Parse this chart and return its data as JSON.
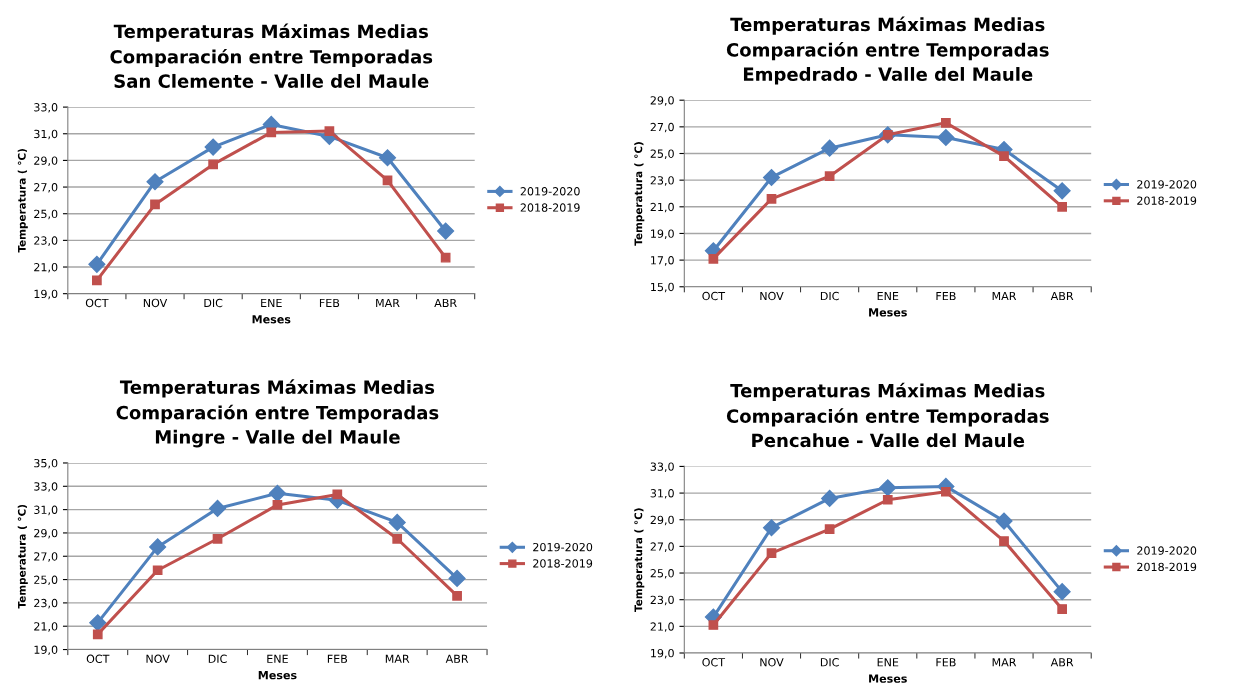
{
  "chart_data": [
    {
      "type": "line",
      "title": "Temperaturas Máximas Medias\nComparación entre Temporadas\nSan Clemente - Valle del Maule",
      "xlabel": "Meses",
      "ylabel": "Temperatura ( °C)",
      "categories": [
        "OCT",
        "NOV",
        "DIC",
        "ENE",
        "FEB",
        "MAR",
        "ABR"
      ],
      "ylim": [
        19,
        33
      ],
      "yticks": [
        {
          "value": 19,
          "label": "19,0"
        },
        {
          "value": 21,
          "label": "21,0"
        },
        {
          "value": 23,
          "label": "23,0"
        },
        {
          "value": 25,
          "label": "25,0"
        },
        {
          "value": 27,
          "label": "27,0"
        },
        {
          "value": 29,
          "label": "29,0"
        },
        {
          "value": 31,
          "label": "31,0"
        },
        {
          "value": 33,
          "label": "33,0"
        }
      ],
      "grid": "y",
      "legend": "right",
      "series": [
        {
          "name": "2019-2020",
          "color": "#4f81bd",
          "marker": "diamond",
          "values": [
            21.2,
            27.4,
            30.0,
            31.7,
            30.8,
            29.2,
            23.7
          ]
        },
        {
          "name": "2018-2019",
          "color": "#c0504d",
          "marker": "square",
          "values": [
            20.0,
            25.7,
            28.7,
            31.1,
            31.2,
            27.5,
            21.7
          ]
        }
      ]
    },
    {
      "type": "line",
      "title": "Temperaturas Máximas Medias\nComparación entre Temporadas\nEmpedrado - Valle del Maule",
      "xlabel": "Meses",
      "ylabel": "Temperatura ( °C)",
      "categories": [
        "OCT",
        "NOV",
        "DIC",
        "ENE",
        "FEB",
        "MAR",
        "ABR"
      ],
      "ylim": [
        15,
        29
      ],
      "yticks": [
        {
          "value": 15,
          "label": "15,0"
        },
        {
          "value": 17,
          "label": "17,0"
        },
        {
          "value": 19,
          "label": "19,0"
        },
        {
          "value": 21,
          "label": "21,0"
        },
        {
          "value": 23,
          "label": "23,0"
        },
        {
          "value": 25,
          "label": "25,0"
        },
        {
          "value": 27,
          "label": "27,0"
        },
        {
          "value": 29,
          "label": "29,0"
        }
      ],
      "grid": "y",
      "legend": "right",
      "series": [
        {
          "name": "2019-2020",
          "color": "#4f81bd",
          "marker": "diamond",
          "values": [
            17.7,
            23.2,
            25.4,
            26.4,
            26.2,
            25.3,
            22.2
          ]
        },
        {
          "name": "2018-2019",
          "color": "#c0504d",
          "marker": "square",
          "values": [
            17.1,
            21.6,
            23.3,
            26.4,
            27.3,
            24.8,
            21.0
          ]
        }
      ]
    },
    {
      "type": "line",
      "title": "Temperaturas Máximas Medias\nComparación entre Temporadas\nMingre - Valle del Maule",
      "xlabel": "Meses",
      "ylabel": "Temperatura ( °C)",
      "categories": [
        "OCT",
        "NOV",
        "DIC",
        "ENE",
        "FEB",
        "MAR",
        "ABR"
      ],
      "ylim": [
        19,
        35
      ],
      "yticks": [
        {
          "value": 19,
          "label": "19,0"
        },
        {
          "value": 21,
          "label": "21,0"
        },
        {
          "value": 23,
          "label": "23,0"
        },
        {
          "value": 25,
          "label": "25,0"
        },
        {
          "value": 27,
          "label": "27,0"
        },
        {
          "value": 29,
          "label": "29,0"
        },
        {
          "value": 31,
          "label": "31,0"
        },
        {
          "value": 33,
          "label": "33,0"
        },
        {
          "value": 35,
          "label": "35,0"
        }
      ],
      "grid": "y",
      "legend": "right",
      "series": [
        {
          "name": "2019-2020",
          "color": "#4f81bd",
          "marker": "diamond",
          "values": [
            21.3,
            27.8,
            31.1,
            32.4,
            31.8,
            29.9,
            25.1
          ]
        },
        {
          "name": "2018-2019",
          "color": "#c0504d",
          "marker": "square",
          "values": [
            20.3,
            25.8,
            28.5,
            31.4,
            32.3,
            28.5,
            23.6
          ]
        }
      ]
    },
    {
      "type": "line",
      "title": "Temperaturas Máximas Medias\nComparación entre Temporadas\nPencahue - Valle del Maule",
      "xlabel": "Meses",
      "ylabel": "Temperatura ( °C)",
      "categories": [
        "OCT",
        "NOV",
        "DIC",
        "ENE",
        "FEB",
        "MAR",
        "ABR"
      ],
      "ylim": [
        19,
        33
      ],
      "yticks": [
        {
          "value": 19,
          "label": "19,0"
        },
        {
          "value": 21,
          "label": "21,0"
        },
        {
          "value": 23,
          "label": "23,0"
        },
        {
          "value": 25,
          "label": "25,0"
        },
        {
          "value": 27,
          "label": "27,0"
        },
        {
          "value": 29,
          "label": "29,0"
        },
        {
          "value": 31,
          "label": "31,0"
        },
        {
          "value": 33,
          "label": "33,0"
        }
      ],
      "grid": "y",
      "legend": "right",
      "series": [
        {
          "name": "2019-2020",
          "color": "#4f81bd",
          "marker": "diamond",
          "values": [
            21.7,
            28.4,
            30.6,
            31.4,
            31.5,
            28.9,
            23.6
          ]
        },
        {
          "name": "2018-2019",
          "color": "#c0504d",
          "marker": "square",
          "values": [
            21.1,
            26.5,
            28.3,
            30.5,
            31.1,
            27.4,
            22.3
          ]
        }
      ]
    }
  ]
}
